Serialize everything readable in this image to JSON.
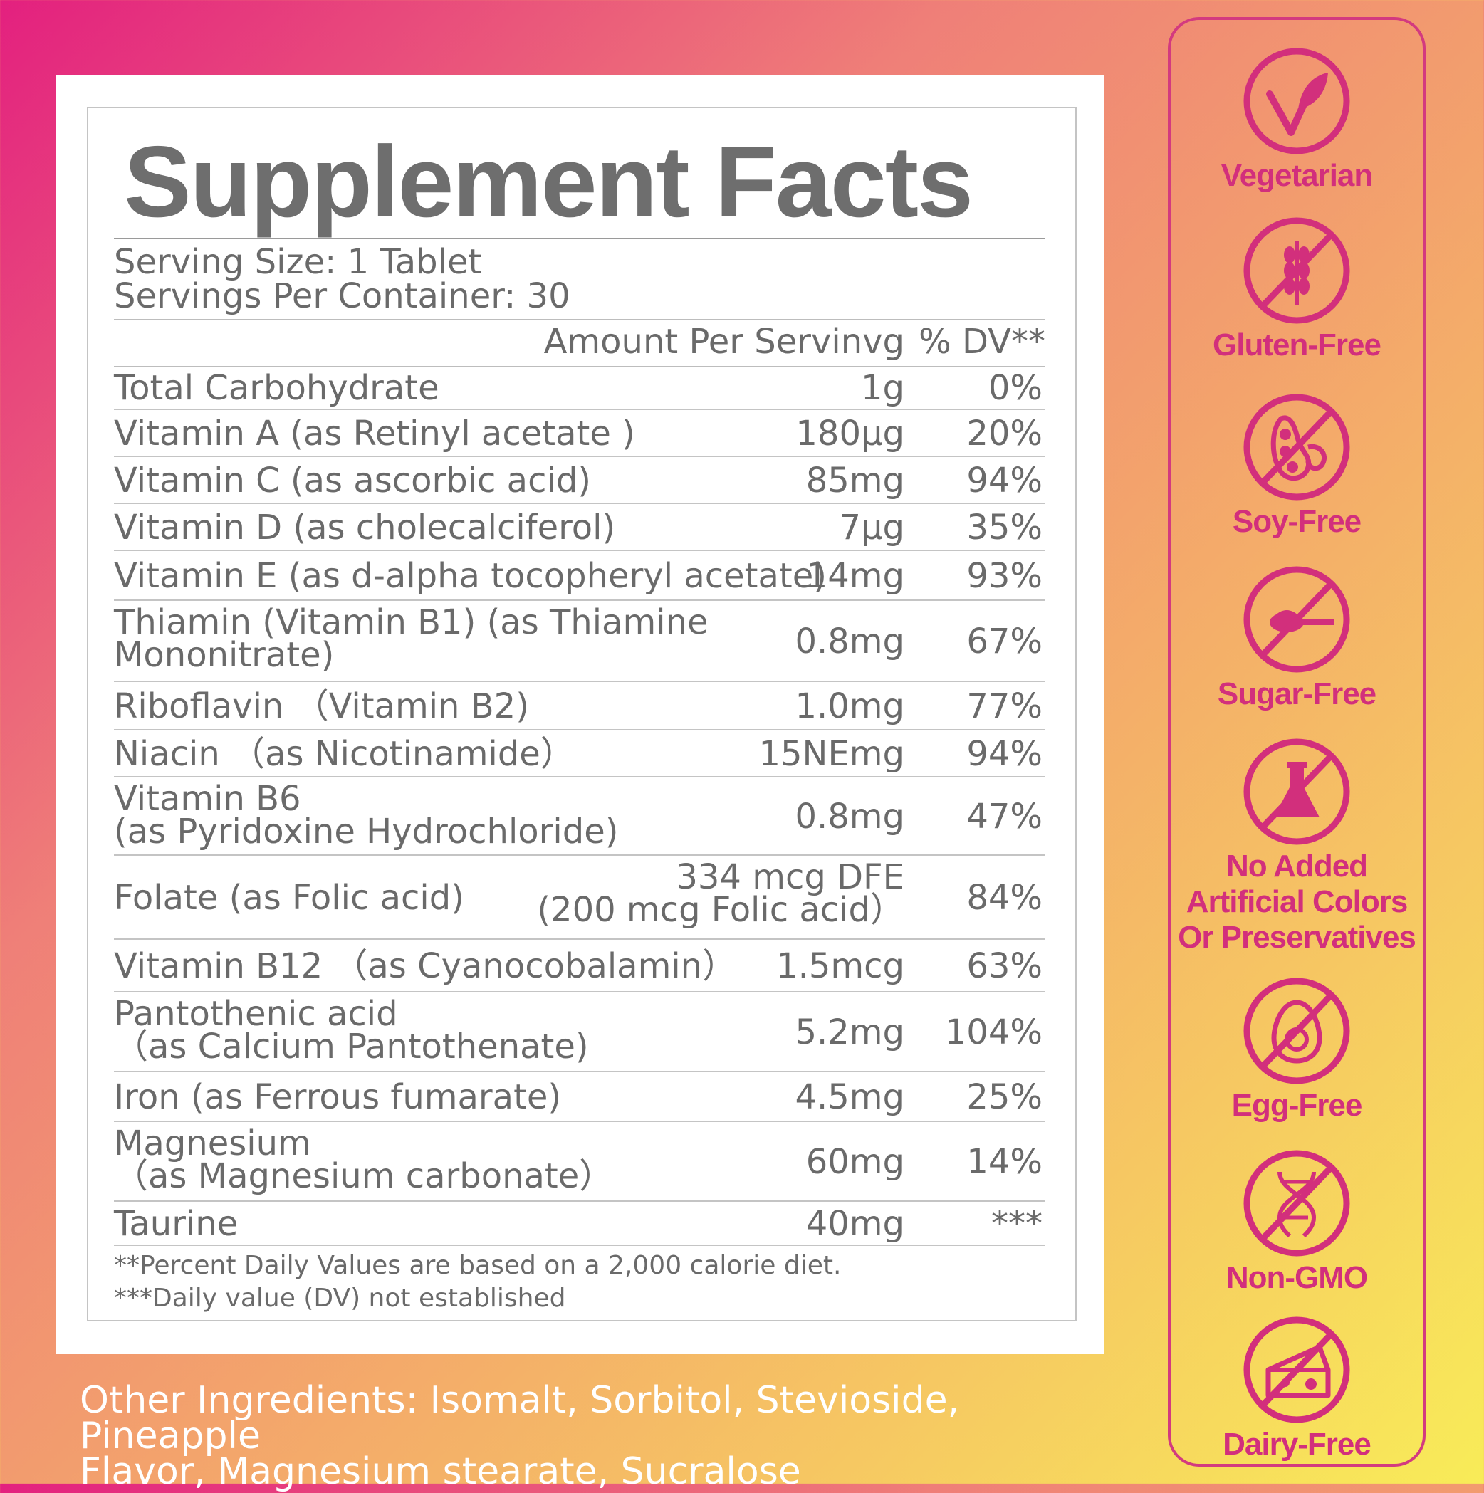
{
  "label": {
    "title": "Supplement Facts",
    "serving_size": "Serving Size: 1 Tablet",
    "servings_per_container": "Servings Per Container: 30",
    "col_amount": "Amount Per Servinvg",
    "col_dv": "% DV**",
    "rows": [
      {
        "name": "Total Carbohydrate",
        "amount": "1g",
        "dv": "0%"
      },
      {
        "name": "Vitamin A (as Retinyl acetate )",
        "amount": "180μg",
        "dv": "20%"
      },
      {
        "name": "Vitamin C (as ascorbic acid)",
        "amount": "85mg",
        "dv": "94%"
      },
      {
        "name": "Vitamin D (as cholecalciferol)",
        "amount": "7μg",
        "dv": "35%"
      },
      {
        "name": "Vitamin E (as d-alpha tocopheryl acetate)",
        "amount": "14mg",
        "dv": "93%"
      },
      {
        "name": "Thiamin (Vitamin B1) (as Thiamine",
        "name2": "Mononitrate)",
        "amount": "0.8mg",
        "dv": "67%"
      },
      {
        "name": "Riboflavin （Vitamin B2)",
        "amount": "1.0mg",
        "dv": "77%"
      },
      {
        "name": "Niacin （as Nicotinamide）",
        "amount": "15NEmg",
        "dv": "94%"
      },
      {
        "name": "Vitamin B6",
        "name2": " (as Pyridoxine Hydrochloride)",
        "amount": "0.8mg",
        "dv": "47%"
      },
      {
        "name": "Folate (as Folic acid)",
        "amount": "334 mcg DFE",
        "amount2": "(200 mcg Folic acid）",
        "dv": "84%"
      },
      {
        "name": "Vitamin B12 （as Cyanocobalamin）",
        "amount": "1.5mcg",
        "dv": "63%"
      },
      {
        "name": "Pantothenic acid",
        "name2": "（as  Calcium Pantothenate)",
        "amount": "5.2mg",
        "dv": "104%"
      },
      {
        "name": "Iron (as Ferrous fumarate)",
        "amount": "4.5mg",
        "dv": "25%"
      },
      {
        "name": "Magnesium",
        "name2": "（as Magnesium carbonate）",
        "amount": "60mg",
        "dv": "14%"
      },
      {
        "name": "Taurine",
        "amount": "40mg",
        "dv": "***"
      }
    ],
    "footnote1": "**Percent Daily Values are based on a 2,000 calorie diet.",
    "footnote2": "***Daily value (DV) not established"
  },
  "other_ingredients": {
    "line1": "Other Ingredients: Isomalt, Sorbitol, Stevioside, Pineapple",
    "line2": "Flavor, Magnesium stearate, Sucralose"
  },
  "badges": [
    {
      "label": "Vegetarian",
      "icon": "leaf-check-icon"
    },
    {
      "label": "Gluten-Free",
      "icon": "wheat-icon"
    },
    {
      "label": "Soy-Free",
      "icon": "soybean-icon"
    },
    {
      "label": "Sugar-Free",
      "icon": "sugar-spoon-icon"
    },
    {
      "label": "No Added",
      "label2": "Artificial Colors",
      "label3": "Or Preservatives",
      "icon": "flask-icon"
    },
    {
      "label": "Egg-Free",
      "icon": "egg-icon"
    },
    {
      "label": "Non-GMO",
      "icon": "dna-icon"
    },
    {
      "label": "Dairy-Free",
      "icon": "cheese-icon"
    }
  ],
  "colors": {
    "badge_accent": "#d22f7c",
    "label_text": "#6a6a6a",
    "title_text": "#6e6e6e"
  }
}
